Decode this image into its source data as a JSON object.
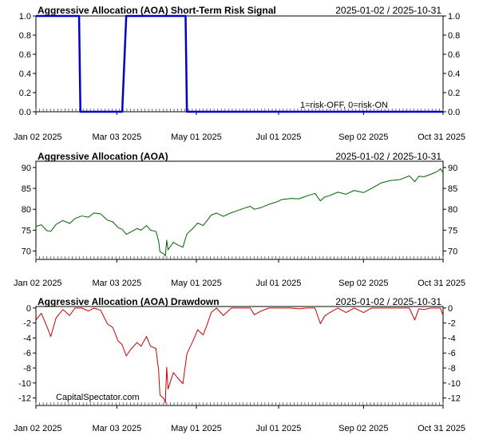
{
  "watermark": "CapitalSpectator.com",
  "colors": {
    "frame": "#000000",
    "grid": "#c8c8c8",
    "signal": "#0000cc",
    "price": "#006400",
    "drawdown": "#cc0000",
    "text": "#000000"
  },
  "x_axis": {
    "range": [
      "2025-01-02",
      "2025-10-31"
    ],
    "tick_labels": [
      {
        "date": "2025-01-02",
        "label": "Jan 02 2025"
      },
      {
        "date": "2025-03-03",
        "label": "Mar 03 2025"
      },
      {
        "date": "2025-05-01",
        "label": "May 01 2025"
      },
      {
        "date": "2025-07-01",
        "label": "Jul 01 2025"
      },
      {
        "date": "2025-09-02",
        "label": "Sep 02 2025"
      },
      {
        "date": "2025-10-31",
        "label": "Oct 31 2025"
      }
    ]
  },
  "chart_data": [
    {
      "type": "line",
      "title": "Aggressive Allocation (AOA) Short-Term Risk Signal",
      "date_range": "2025-01-02 / 2025-10-31",
      "annotation": "1=risk-OFF, 0=risk-ON",
      "ylim": [
        0,
        1
      ],
      "yticks": [
        {
          "v": 0,
          "label": "0.0"
        },
        {
          "v": 0.2,
          "label": "0.2"
        },
        {
          "v": 0.4,
          "label": "0.4"
        },
        {
          "v": 0.6,
          "label": "0.6"
        },
        {
          "v": 0.8,
          "label": "0.8"
        },
        {
          "v": 1,
          "label": "1.0"
        }
      ],
      "grid": false,
      "series": [
        {
          "x": [
            "2025-01-02",
            "2025-02-03",
            "2025-02-04",
            "2025-03-07",
            "2025-03-10",
            "2025-04-23",
            "2025-04-24",
            "2025-10-31"
          ],
          "y": [
            1,
            1,
            0,
            0,
            1,
            1,
            0,
            0
          ]
        }
      ]
    },
    {
      "type": "line",
      "title": "Aggressive Allocation (AOA)",
      "date_range": "2025-01-02 / 2025-10-31",
      "ylim": [
        68,
        91.5
      ],
      "yticks": [
        {
          "v": 70,
          "label": "70"
        },
        {
          "v": 75,
          "label": "75"
        },
        {
          "v": 80,
          "label": "80"
        },
        {
          "v": 85,
          "label": "85"
        },
        {
          "v": 90,
          "label": "90"
        }
      ],
      "grid": false,
      "series": [
        {
          "x": [
            "2025-01-02",
            "2025-01-06",
            "2025-01-10",
            "2025-01-13",
            "2025-01-17",
            "2025-01-22",
            "2025-01-27",
            "2025-01-31",
            "2025-02-05",
            "2025-02-10",
            "2025-02-14",
            "2025-02-19",
            "2025-02-24",
            "2025-02-28",
            "2025-03-04",
            "2025-03-07",
            "2025-03-10",
            "2025-03-13",
            "2025-03-18",
            "2025-03-21",
            "2025-03-25",
            "2025-03-28",
            "2025-04-01",
            "2025-04-03",
            "2025-04-04",
            "2025-04-07",
            "2025-04-08",
            "2025-04-09",
            "2025-04-10",
            "2025-04-14",
            "2025-04-17",
            "2025-04-21",
            "2025-04-24",
            "2025-04-29",
            "2025-05-02",
            "2025-05-06",
            "2025-05-09",
            "2025-05-12",
            "2025-05-16",
            "2025-05-21",
            "2025-05-27",
            "2025-05-30",
            "2025-06-04",
            "2025-06-10",
            "2025-06-13",
            "2025-06-18",
            "2025-06-24",
            "2025-06-30",
            "2025-07-03",
            "2025-07-10",
            "2025-07-16",
            "2025-07-22",
            "2025-07-28",
            "2025-08-01",
            "2025-08-04",
            "2025-08-08",
            "2025-08-14",
            "2025-08-20",
            "2025-08-26",
            "2025-09-02",
            "2025-09-08",
            "2025-09-15",
            "2025-09-22",
            "2025-09-29",
            "2025-10-06",
            "2025-10-10",
            "2025-10-13",
            "2025-10-17",
            "2025-10-22",
            "2025-10-27",
            "2025-10-29",
            "2025-10-31"
          ],
          "y": [
            75.9,
            76.3,
            74.9,
            74.7,
            76.4,
            77.3,
            76.6,
            77.8,
            78.4,
            78.1,
            79.1,
            78.9,
            77.4,
            77.0,
            75.6,
            75.2,
            74.0,
            74.5,
            75.4,
            75.0,
            76.1,
            75.0,
            74.7,
            72.4,
            69.8,
            69.3,
            68.8,
            72.6,
            70.3,
            72.1,
            71.5,
            70.9,
            74.1,
            75.6,
            76.7,
            76.1,
            77.3,
            78.6,
            79.1,
            78.3,
            79.2,
            79.5,
            80.1,
            80.7,
            80.0,
            80.4,
            81.2,
            81.8,
            82.3,
            82.6,
            82.5,
            83.2,
            83.8,
            82.0,
            82.9,
            83.3,
            84.1,
            83.6,
            84.5,
            84.0,
            85.0,
            86.3,
            86.9,
            87.1,
            88.0,
            86.6,
            87.9,
            87.8,
            88.4,
            89.1,
            89.7,
            88.8
          ]
        }
      ]
    },
    {
      "type": "line",
      "title": "Aggressive Allocation (AOA) Drawdown",
      "date_range": "2025-01-02 / 2025-10-31",
      "ylim": [
        -13,
        0.2
      ],
      "yticks": [
        {
          "v": 0,
          "label": "0"
        },
        {
          "v": -2,
          "label": "-2"
        },
        {
          "v": -4,
          "label": "-4"
        },
        {
          "v": -6,
          "label": "-6"
        },
        {
          "v": -8,
          "label": "-8"
        },
        {
          "v": -10,
          "label": "-10"
        },
        {
          "v": -12,
          "label": "-12"
        }
      ],
      "grid": false,
      "series": [
        {
          "x": [
            "2025-01-02",
            "2025-01-06",
            "2025-01-10",
            "2025-01-13",
            "2025-01-17",
            "2025-01-22",
            "2025-01-27",
            "2025-01-31",
            "2025-02-05",
            "2025-02-10",
            "2025-02-14",
            "2025-02-19",
            "2025-02-24",
            "2025-02-28",
            "2025-03-04",
            "2025-03-07",
            "2025-03-10",
            "2025-03-13",
            "2025-03-18",
            "2025-03-21",
            "2025-03-25",
            "2025-03-28",
            "2025-04-01",
            "2025-04-03",
            "2025-04-04",
            "2025-04-07",
            "2025-04-08",
            "2025-04-09",
            "2025-04-10",
            "2025-04-14",
            "2025-04-17",
            "2025-04-21",
            "2025-04-24",
            "2025-04-29",
            "2025-05-02",
            "2025-05-06",
            "2025-05-09",
            "2025-05-12",
            "2025-05-16",
            "2025-05-21",
            "2025-05-27",
            "2025-05-30",
            "2025-06-04",
            "2025-06-10",
            "2025-06-13",
            "2025-06-18",
            "2025-06-24",
            "2025-06-30",
            "2025-07-03",
            "2025-07-10",
            "2025-07-16",
            "2025-07-22",
            "2025-07-28",
            "2025-08-01",
            "2025-08-04",
            "2025-08-08",
            "2025-08-14",
            "2025-08-20",
            "2025-08-26",
            "2025-09-02",
            "2025-09-08",
            "2025-09-15",
            "2025-09-22",
            "2025-09-29",
            "2025-10-06",
            "2025-10-10",
            "2025-10-13",
            "2025-10-17",
            "2025-10-22",
            "2025-10-27",
            "2025-10-29",
            "2025-10-31"
          ],
          "y": [
            -1.6,
            -0.7,
            -2.4,
            -3.8,
            -1.3,
            -0.2,
            -1.0,
            0.0,
            0.0,
            -0.4,
            0.0,
            -0.3,
            -2.1,
            -2.6,
            -4.4,
            -4.9,
            -6.4,
            -5.6,
            -4.6,
            -5.1,
            -3.8,
            -5.1,
            -5.4,
            -8.3,
            -11.6,
            -12.1,
            -12.7,
            -7.9,
            -10.8,
            -8.6,
            -9.3,
            -10.1,
            -6.1,
            -4.2,
            -2.9,
            -3.6,
            -2.2,
            -0.6,
            0.0,
            -1.0,
            0.0,
            0.0,
            0.0,
            0.0,
            -0.9,
            -0.4,
            0.0,
            0.0,
            0.0,
            0.0,
            -0.1,
            0.0,
            0.0,
            -2.1,
            -1.1,
            -0.6,
            0.0,
            -0.6,
            0.0,
            -0.6,
            0.0,
            0.0,
            0.0,
            0.0,
            0.0,
            -1.6,
            -0.1,
            -0.2,
            0.0,
            0.0,
            0.0,
            -1.0
          ]
        }
      ]
    }
  ]
}
